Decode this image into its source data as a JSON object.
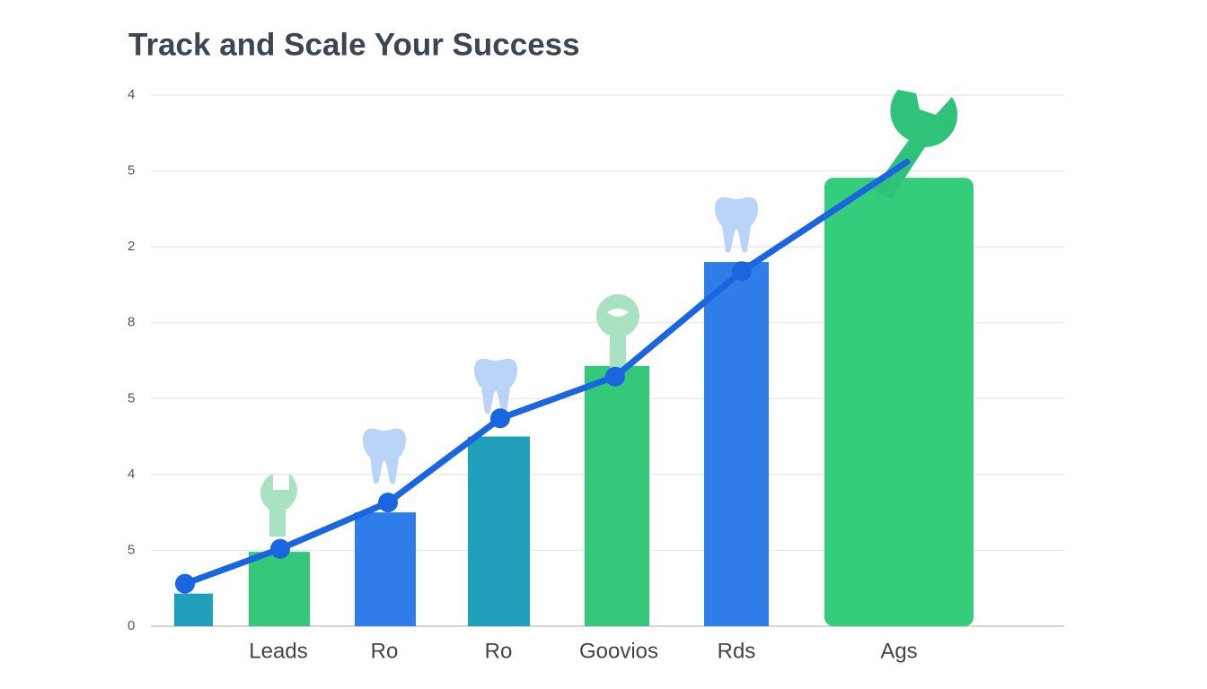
{
  "chart_data": {
    "type": "bar",
    "title": "Track and Scale Your Success",
    "categories": [
      null,
      "Leads",
      "Ro",
      "Ro",
      "Goovios",
      "Rds",
      "Ags"
    ],
    "values": [
      0.43,
      0.98,
      1.5,
      2.5,
      3.43,
      4.8,
      5.91
    ],
    "colors": [
      "#1f9fba",
      "#34c97a",
      "#2f7de8",
      "#1f9fba",
      "#34c97a",
      "#2f7de8",
      "#34cd7b"
    ],
    "series": [
      {
        "name": null,
        "color": "#1a66e0",
        "values": [
          0.56,
          1.02,
          1.63,
          2.74,
          3.29,
          4.68,
          6.12
        ]
      }
    ],
    "ylim": [
      0,
      7
    ],
    "yticks": [
      {
        "value": 0,
        "label": "0"
      },
      {
        "value": 1,
        "label": "5"
      },
      {
        "value": 2,
        "label": "4"
      },
      {
        "value": 3,
        "label": "5"
      },
      {
        "value": 4,
        "label": "8"
      },
      {
        "value": 5,
        "label": "2"
      },
      {
        "value": 6,
        "label": "5"
      },
      {
        "value": 7,
        "label": "4"
      }
    ],
    "grid": true
  }
}
